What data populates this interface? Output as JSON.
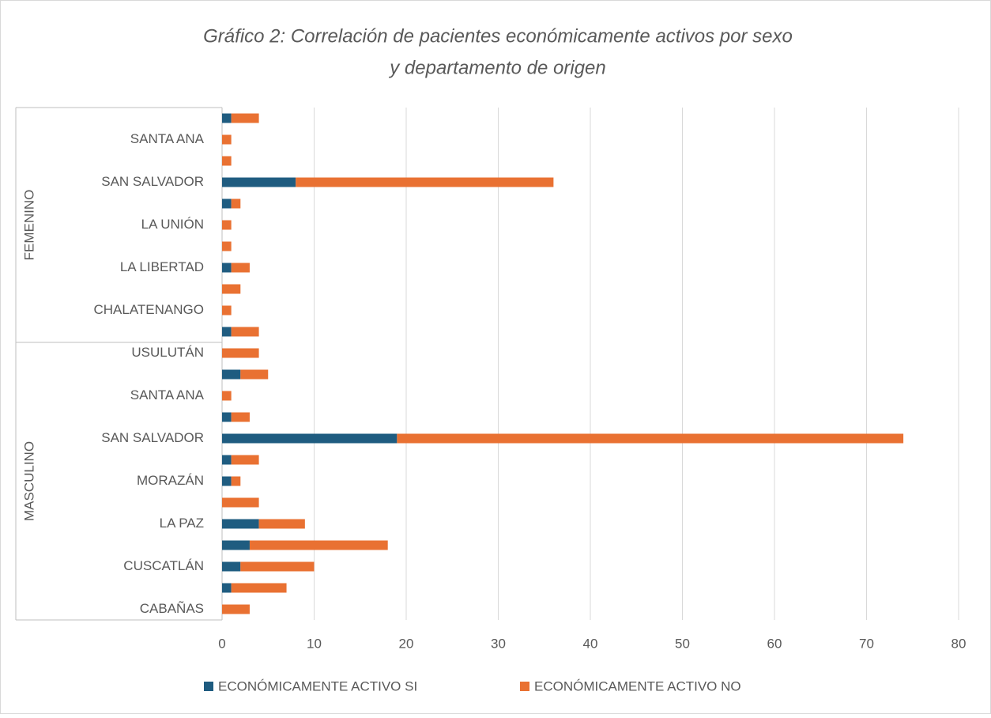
{
  "chart_data": {
    "type": "bar",
    "orientation": "horizontal",
    "stacked": true,
    "title": "Gráfico 2: Correlación de pacientes económicamente activos por sexo",
    "subtitle": "y departamento de origen",
    "groups": [
      {
        "name": "FEMENINO",
        "categories": [
          null,
          "SANTA ANA",
          null,
          "SAN SALVADOR",
          null,
          "LA UNIÓN",
          null,
          "LA LIBERTAD",
          null,
          "CHALATENANGO",
          null
        ]
      },
      {
        "name": "MASCULINO",
        "categories": [
          "USULUTÁN",
          null,
          "SANTA ANA",
          null,
          "SAN SALVADOR",
          null,
          "MORAZÁN",
          null,
          "LA PAZ",
          null,
          "CUSCATLÁN",
          null,
          "CABAÑAS"
        ]
      }
    ],
    "series": [
      {
        "name": "ECONÓMICAMENTE ACTIVO SI",
        "color": "#1f5c80",
        "values": [
          1,
          0,
          0,
          8,
          1,
          0,
          0,
          1,
          0,
          0,
          1,
          0,
          2,
          0,
          1,
          19,
          1,
          1,
          0,
          4,
          3,
          2,
          1,
          0
        ]
      },
      {
        "name": "ECONÓMICAMENTE ACTIVO NO",
        "color": "#e97132",
        "values": [
          3,
          1,
          1,
          28,
          1,
          1,
          1,
          2,
          2,
          1,
          3,
          4,
          3,
          1,
          2,
          55,
          3,
          1,
          4,
          5,
          15,
          8,
          6,
          3
        ]
      }
    ],
    "xlim": [
      0,
      80
    ],
    "xticks": [
      0,
      10,
      20,
      30,
      40,
      50,
      60,
      70,
      80
    ],
    "grid": true,
    "legend": "bottom"
  }
}
